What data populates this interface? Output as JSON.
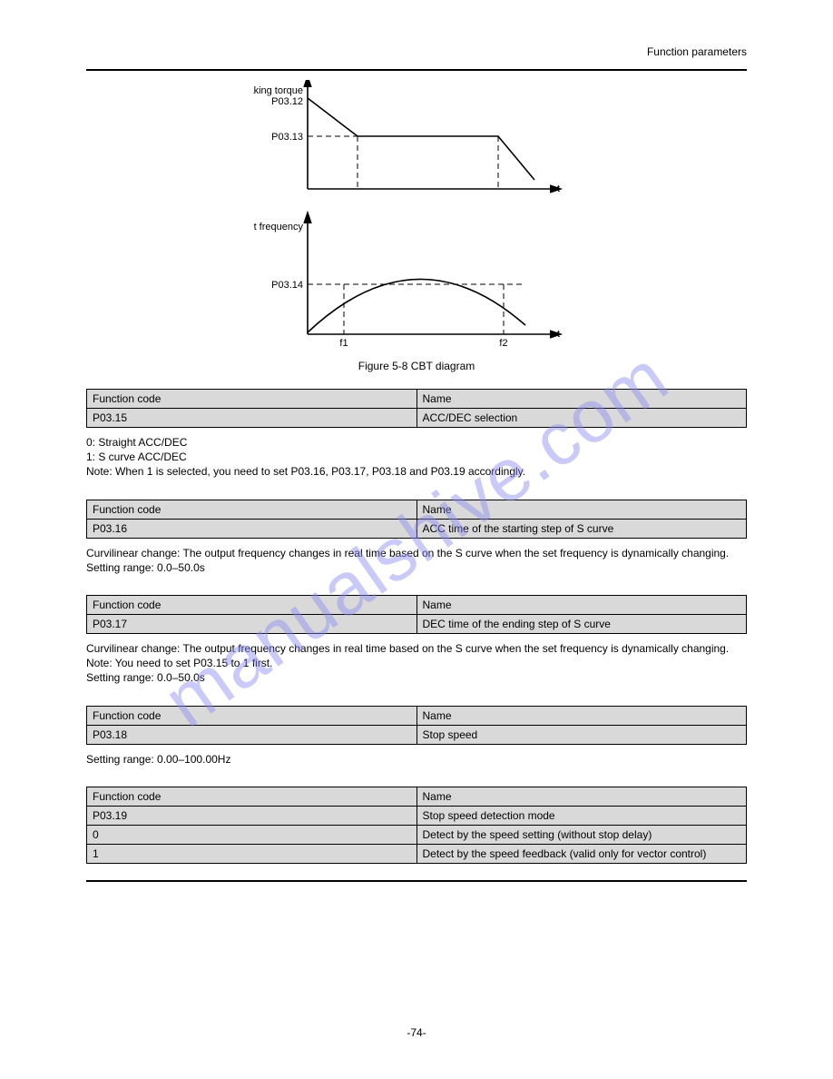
{
  "header": {
    "right": "Function parameters"
  },
  "figure": {
    "caption": "Figure 5-8 CBT diagram",
    "labels": {
      "axis1_y": "Braking torque",
      "axis1_x": "t",
      "h1": "P03.12",
      "h2": "P03.13",
      "axis2_y": "Output frequency",
      "axis2_x": "t",
      "f1": "f1",
      "f2": "f2",
      "h3": "P03.14"
    },
    "colors": {
      "stroke": "#000000",
      "dash": "#000000"
    },
    "stroke_width": 1.5,
    "arrow_size": 9
  },
  "params": [
    {
      "title_l": "Function code",
      "title_r": "Name",
      "code": "P03.15",
      "name": "ACC/DEC selection",
      "text": "0: Straight ACC/DEC\n1: S curve ACC/DEC\nNote: When 1 is selected, you need to set P03.16, P03.17, P03.18 and P03.19 accordingly."
    },
    {
      "title_l": "Function code",
      "title_r": "Name",
      "code": "P03.16",
      "name": "ACC time of the starting step of S curve",
      "text": "Curvilinear change: The output frequency changes in real time based on the S curve when the set frequency is dynamically changing.\nSetting range: 0.0–50.0s"
    },
    {
      "title_l": "Function code",
      "title_r": "Name",
      "code": "P03.17",
      "name": "DEC time of the ending step of S curve",
      "text": "Curvilinear change: The output frequency changes in real time based on the S curve when the set frequency is dynamically changing.\nNote: You need to set P03.15 to 1 first.\nSetting range: 0.0–50.0s"
    },
    {
      "title_l": "Function code",
      "title_r": "Name",
      "code": "P03.18",
      "name": "Stop speed",
      "text": "Setting range: 0.00–100.00Hz"
    },
    {
      "title_l": "Function code",
      "title_r": "Name",
      "code": "P03.19",
      "name": "Stop speed detection mode",
      "rows": [
        {
          "k": "0",
          "v": "Detect by the speed setting (without stop delay)"
        },
        {
          "k": "1",
          "v": "Detect by the speed feedback (valid only for vector control)"
        }
      ]
    }
  ],
  "footer": {
    "left": "",
    "center": "-74-"
  },
  "watermark": "manualshive.com"
}
